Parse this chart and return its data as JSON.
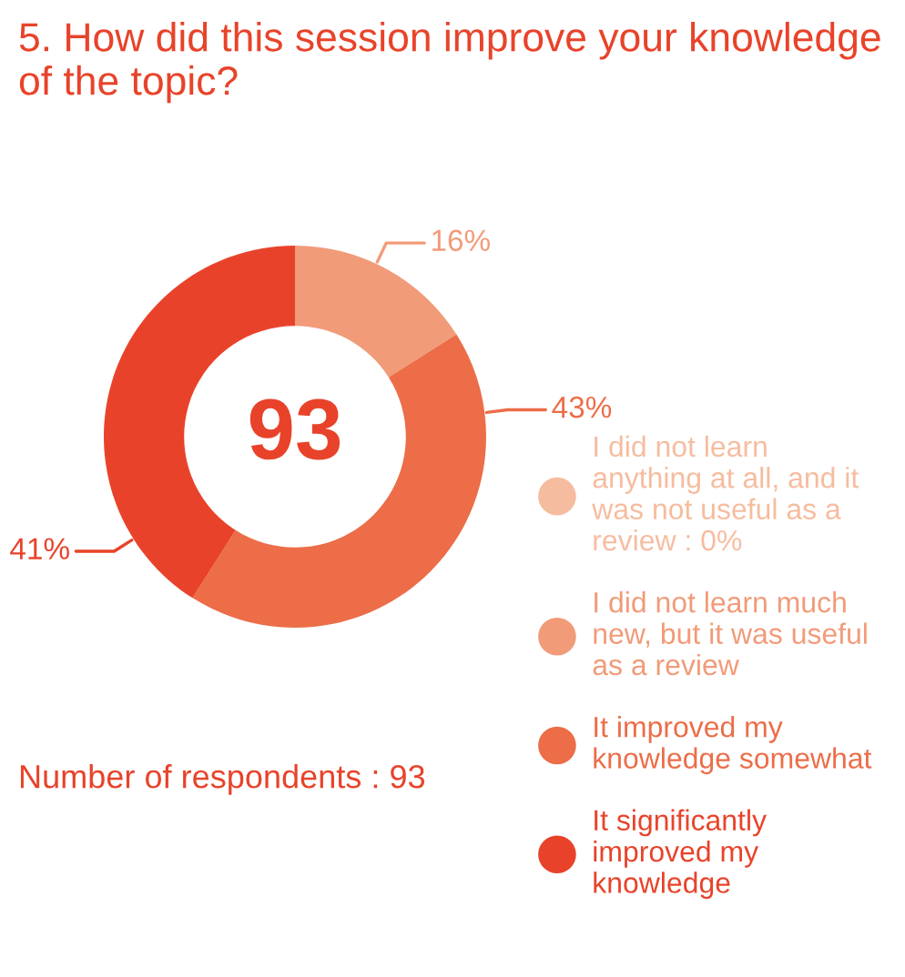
{
  "chart_data": {
    "type": "donut",
    "title": "5. How did this session improve your knowledge of the topic?",
    "categories": [
      "I did not learn anything at all, and it was not useful as a review : 0%",
      "I did not learn much new, but it was useful as a review",
      "It improved my knowledge somewhat",
      "It significantly improved my knowledge"
    ],
    "values": [
      0,
      16,
      43,
      41
    ],
    "value_labels": [
      null,
      "16%",
      "43%",
      "41%"
    ],
    "colors": [
      "#f6bc9f",
      "#f19b79",
      "#ec6d48",
      "#e8432a"
    ],
    "annotations": [
      "93",
      "Number of respondents : 93"
    ],
    "legend": "right"
  }
}
